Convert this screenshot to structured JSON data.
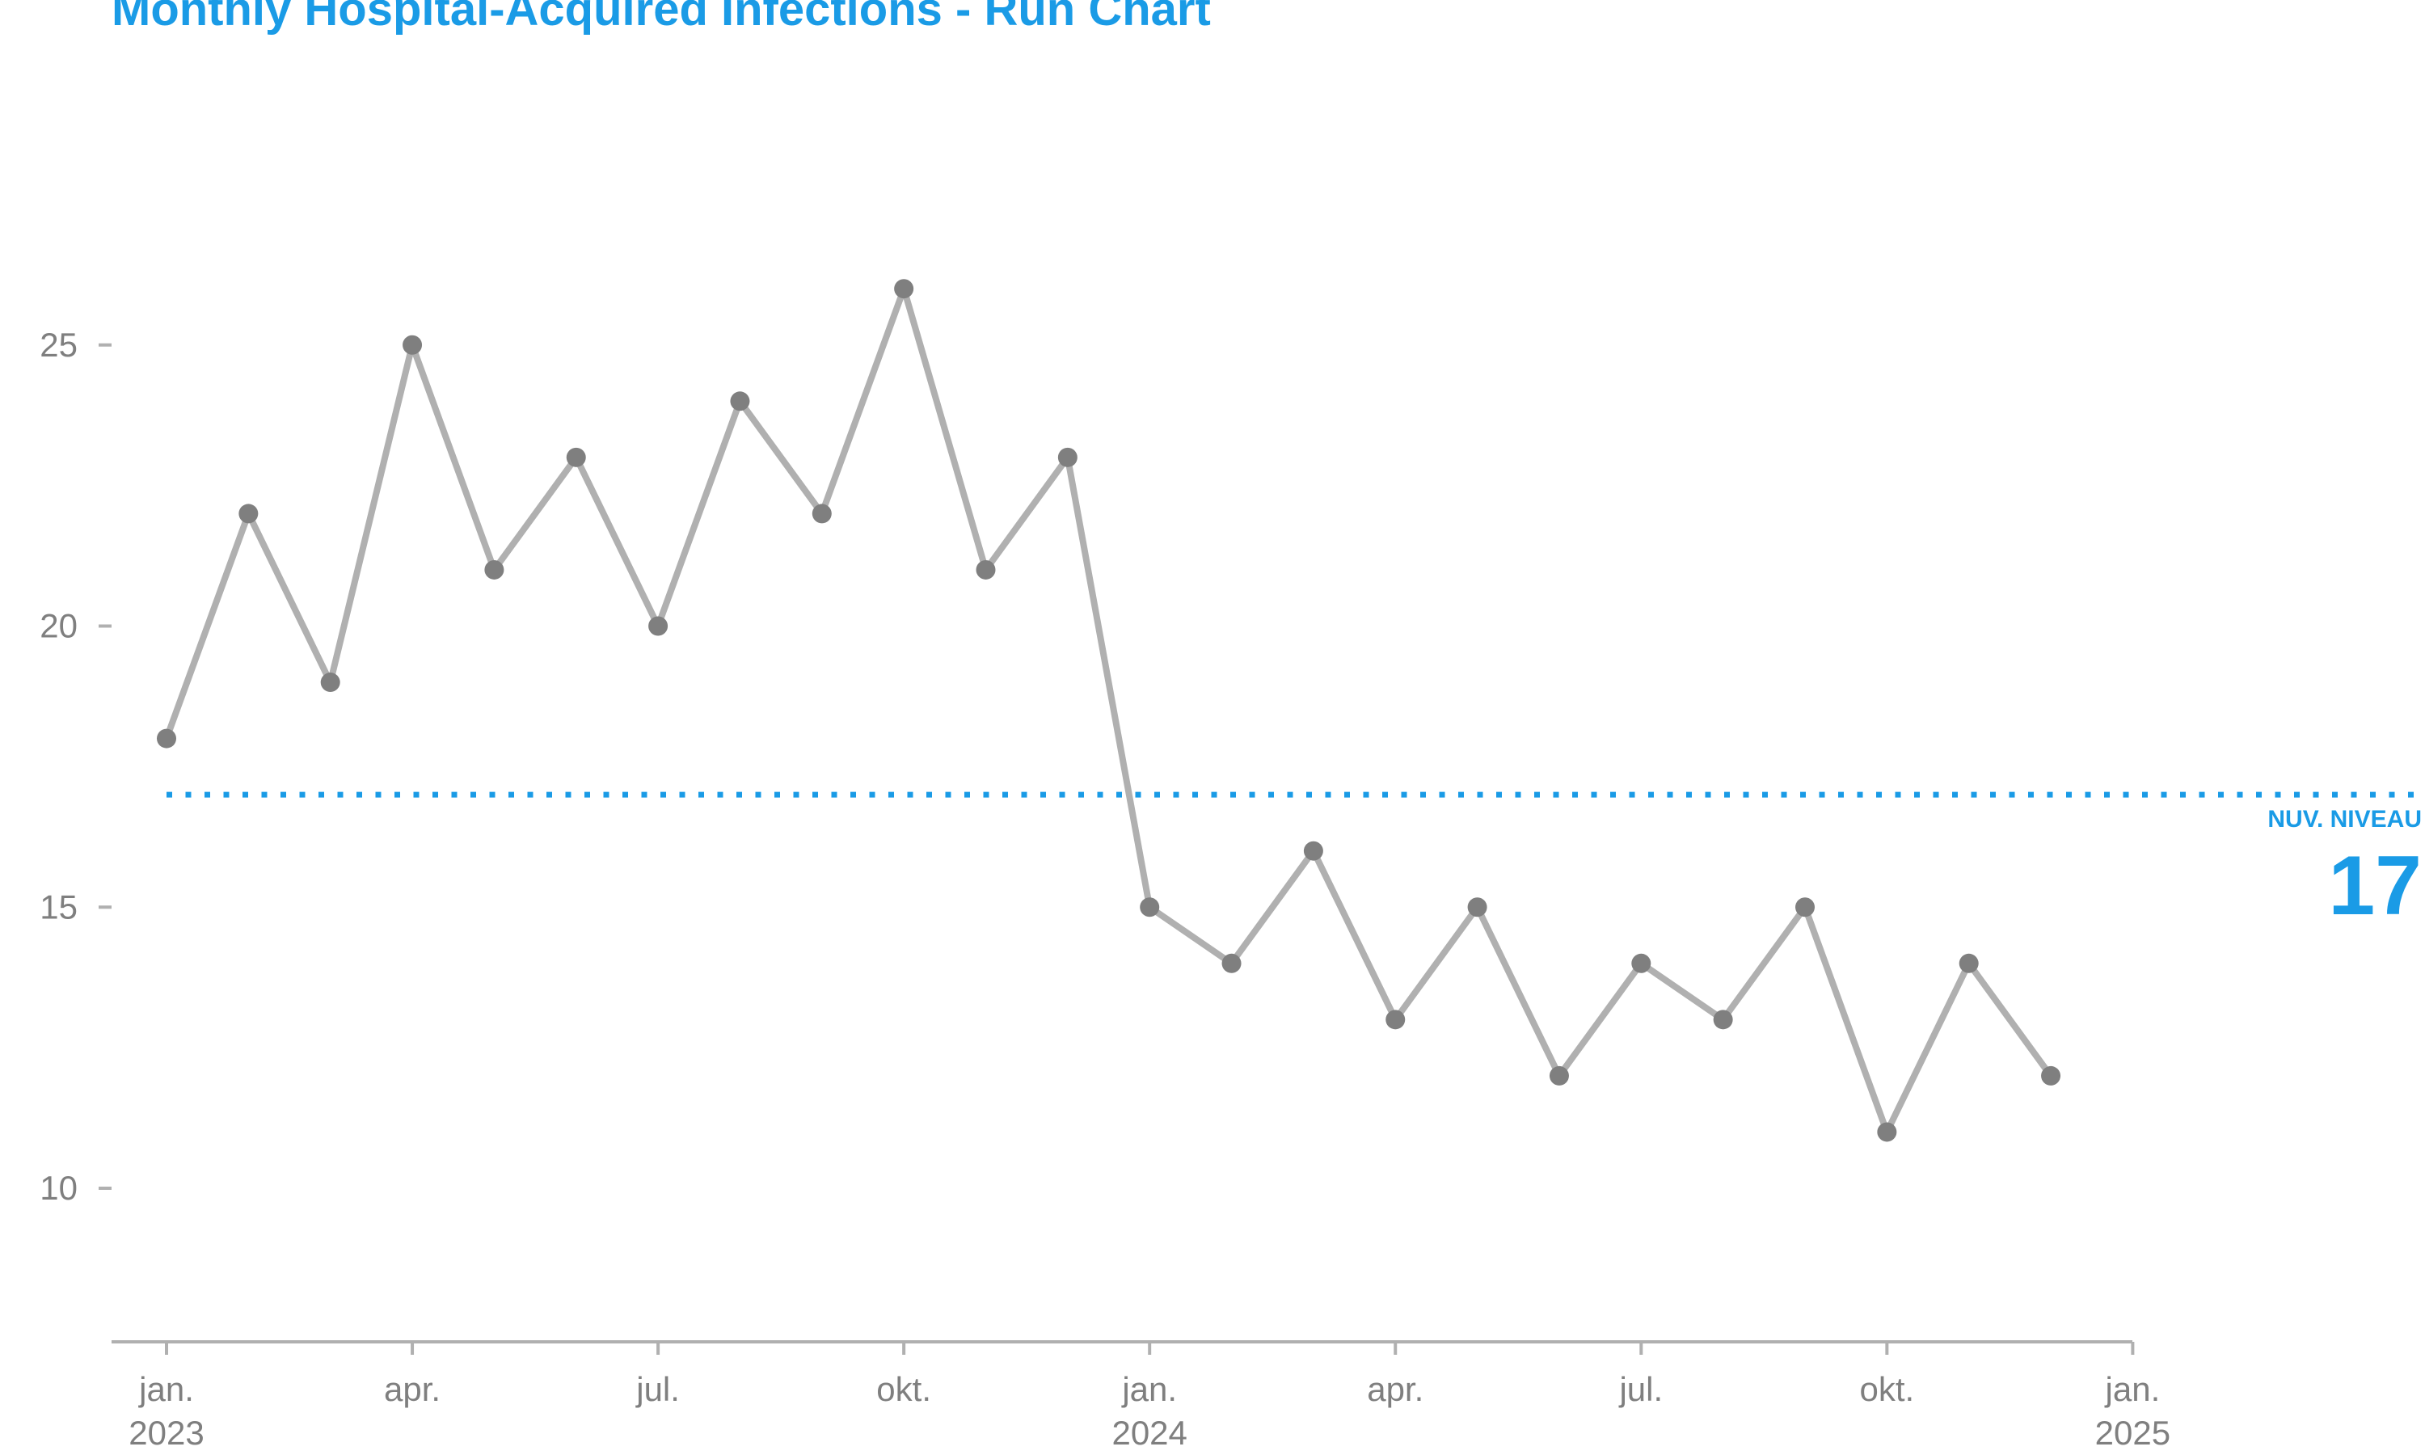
{
  "title": "Monthly Hospital-Acquired Infections - Run Chart",
  "colors": {
    "title": "#1a9be6",
    "line": "#b0b0b0",
    "points": "#7f7f7f",
    "reference": "#1a9be6",
    "axis": "#b0b0b0",
    "ticks_text": "#7f7f7f"
  },
  "chart_data": {
    "type": "line",
    "title": "Monthly Hospital-Acquired Infections - Run Chart",
    "xlabel": "",
    "ylabel": "",
    "x": [
      "2023-01",
      "2023-02",
      "2023-03",
      "2023-04",
      "2023-05",
      "2023-06",
      "2023-07",
      "2023-08",
      "2023-09",
      "2023-10",
      "2023-11",
      "2023-12",
      "2024-01",
      "2024-02",
      "2024-03",
      "2024-04",
      "2024-05",
      "2024-06",
      "2024-07",
      "2024-08",
      "2024-09",
      "2024-10",
      "2024-11",
      "2024-12"
    ],
    "series": [
      {
        "values": [
          18,
          22,
          19,
          25,
          21,
          23,
          20,
          24,
          22,
          26,
          21,
          23,
          15,
          14,
          16,
          13,
          15,
          12,
          14,
          13,
          15,
          11,
          14,
          12
        ]
      }
    ],
    "xlim": [
      "2022-12-07",
      "2025-01-01"
    ],
    "ylim": [
      7.3,
      27.5
    ],
    "y_ticks": [
      10,
      15,
      20,
      25
    ],
    "x_ticks": [
      {
        "month_index": 0,
        "label": "jan.",
        "year": "2023"
      },
      {
        "month_index": 3,
        "label": "apr.",
        "year": ""
      },
      {
        "month_index": 6,
        "label": "jul.",
        "year": ""
      },
      {
        "month_index": 9,
        "label": "okt.",
        "year": ""
      },
      {
        "month_index": 12,
        "label": "jan.",
        "year": "2024"
      },
      {
        "month_index": 15,
        "label": "apr.",
        "year": ""
      },
      {
        "month_index": 18,
        "label": "jul.",
        "year": ""
      },
      {
        "month_index": 21,
        "label": "okt.",
        "year": ""
      },
      {
        "month_index": 24,
        "label": "jan.",
        "year": "2025"
      }
    ],
    "reference_line": {
      "value": 17,
      "label": "NUV. NIVEAU",
      "value_label": "17",
      "style": "dotted"
    },
    "grid": false,
    "legend": "none"
  }
}
